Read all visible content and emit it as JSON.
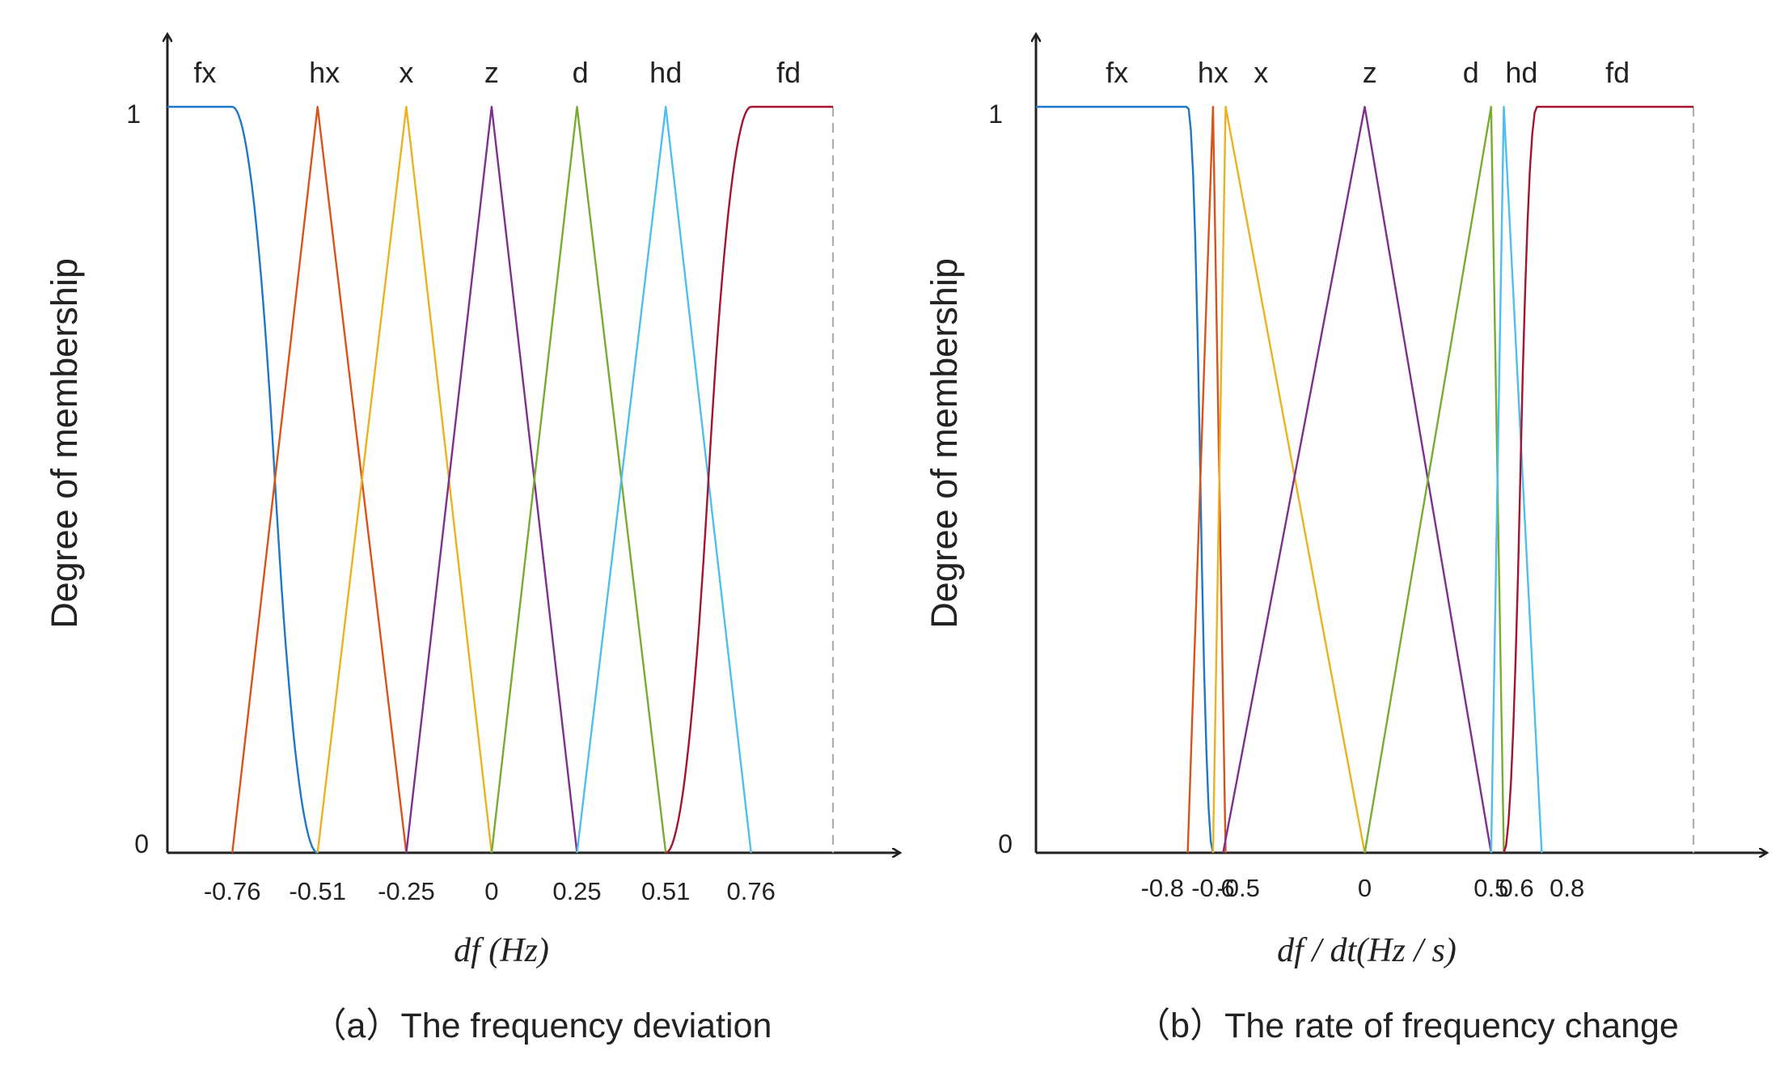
{
  "colors": {
    "axis": "#222222",
    "fx": "#1f77c8",
    "hx": "#d95319",
    "x": "#edb120",
    "z": "#7e2f8e",
    "d": "#77ac30",
    "hd": "#4dbeee",
    "fd": "#a2142f",
    "boundary": "#b0b0b0"
  },
  "chart_data": [
    {
      "type": "line",
      "subtitle": "（a）The frequency deviation",
      "xlabel": "df (Hz)",
      "ylabel": "Degree of membership",
      "ytick_top": "1",
      "ytick_bottom": "0",
      "xlim": [
        -0.95,
        1.0
      ],
      "ylim": [
        0,
        1
      ],
      "xticks": [
        {
          "value": -0.76,
          "label": "-0.76"
        },
        {
          "value": -0.51,
          "label": "-0.51"
        },
        {
          "value": -0.25,
          "label": "-0.25"
        },
        {
          "value": 0,
          "label": "0"
        },
        {
          "value": 0.25,
          "label": "0.25"
        },
        {
          "value": 0.51,
          "label": "0.51"
        },
        {
          "value": 0.76,
          "label": "0.76"
        }
      ],
      "series": [
        {
          "name": "fx",
          "shape": "zmf",
          "color_key": "fx",
          "label_x": -0.84,
          "params": [
            -0.76,
            -0.51
          ],
          "range": [
            -0.95,
            -0.51
          ]
        },
        {
          "name": "hx",
          "shape": "trimf",
          "color_key": "hx",
          "label_x": -0.49,
          "params": [
            -0.76,
            -0.51,
            -0.25
          ]
        },
        {
          "name": "x",
          "shape": "trimf",
          "color_key": "x",
          "label_x": -0.25,
          "params": [
            -0.51,
            -0.25,
            0
          ]
        },
        {
          "name": "z",
          "shape": "trimf",
          "color_key": "z",
          "label_x": 0.0,
          "params": [
            -0.25,
            0,
            0.25
          ]
        },
        {
          "name": "d",
          "shape": "trimf",
          "color_key": "d",
          "label_x": 0.26,
          "params": [
            0,
            0.25,
            0.51
          ]
        },
        {
          "name": "hd",
          "shape": "trimf",
          "color_key": "hd",
          "label_x": 0.51,
          "params": [
            0.25,
            0.51,
            0.76
          ]
        },
        {
          "name": "fd",
          "shape": "smf",
          "color_key": "fd",
          "label_x": 0.87,
          "params": [
            0.51,
            0.76
          ],
          "range": [
            0.51,
            1.0
          ]
        }
      ]
    },
    {
      "type": "line",
      "subtitle": "（b）The rate of frequency change",
      "xlabel": "df / dt(Hz / s)",
      "ylabel": "Degree of membership",
      "ytick_top": "1",
      "ytick_bottom": "0",
      "xlim": [
        -1.3,
        1.3
      ],
      "ylim": [
        0,
        1
      ],
      "xticks": [
        {
          "value": -0.8,
          "label": "-0.8"
        },
        {
          "value": -0.6,
          "label": "-0.6"
        },
        {
          "value": -0.5,
          "label": "-0.5"
        },
        {
          "value": 0,
          "label": "0"
        },
        {
          "value": 0.5,
          "label": "0.5"
        },
        {
          "value": 0.6,
          "label": "0.6"
        },
        {
          "value": 0.8,
          "label": "0.8"
        }
      ],
      "series": [
        {
          "name": "fx",
          "shape": "zmf",
          "color_key": "fx",
          "label_x": -0.98,
          "params": [
            -0.7,
            -0.6
          ],
          "range": [
            -1.3,
            -0.6
          ]
        },
        {
          "name": "hx",
          "shape": "trimf",
          "color_key": "hx",
          "label_x": -0.6,
          "params": [
            -0.7,
            -0.6,
            -0.55
          ]
        },
        {
          "name": "x",
          "shape": "trimf",
          "color_key": "x",
          "label_x": -0.41,
          "params": [
            -0.6,
            -0.55,
            0
          ]
        },
        {
          "name": "z",
          "shape": "trimf",
          "color_key": "z",
          "label_x": 0.02,
          "params": [
            -0.56,
            0,
            0.5
          ]
        },
        {
          "name": "d",
          "shape": "trimf",
          "color_key": "d",
          "label_x": 0.42,
          "params": [
            0,
            0.5,
            0.55
          ]
        },
        {
          "name": "hd",
          "shape": "trimf",
          "color_key": "hd",
          "label_x": 0.62,
          "params": [
            0.5,
            0.55,
            0.7
          ]
        },
        {
          "name": "fd",
          "shape": "smf",
          "color_key": "fd",
          "label_x": 1.0,
          "params": [
            0.55,
            0.68
          ],
          "range": [
            0.55,
            1.3
          ]
        }
      ]
    }
  ]
}
